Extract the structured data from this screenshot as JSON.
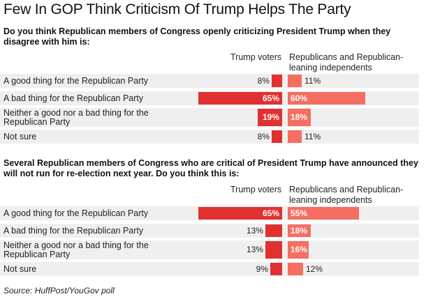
{
  "title": "Few In GOP Think Criticism Of Trump Helps The Party",
  "source": "Source: HuffPost/YouGov poll",
  "colors": {
    "trump_voters": "#e03130",
    "republicans": "#f66d61",
    "row_background": "#efefef"
  },
  "chart_data": [
    {
      "type": "bar",
      "question": "Do you think Republican members of Congress openly criticizing President Trump when they disagree with him is:",
      "column_headers": [
        "Trump voters",
        "Republicans and Republican-leaning independents"
      ],
      "categories": [
        "A good thing for the Republican Party",
        "A bad thing for the Republican Party",
        "Neither a good nor a bad thing for the Republican Party",
        "Not sure"
      ],
      "series": [
        {
          "name": "Trump voters",
          "values": [
            8,
            65,
            19,
            8
          ],
          "labels": [
            "8%",
            "65%",
            "19%",
            "8%"
          ]
        },
        {
          "name": "Republicans and Republican-leaning independents",
          "values": [
            11,
            60,
            18,
            11
          ],
          "labels": [
            "11%",
            "60%",
            "18%",
            "11%"
          ]
        }
      ],
      "unit": "%"
    },
    {
      "type": "bar",
      "question": "Several Republican members of Congress who are critical of President Trump have announced they will not run for re-election next year. Do you think this is:",
      "column_headers": [
        "Trump voters",
        "Republicans and Republican-leaning independents"
      ],
      "categories": [
        "A good thing for the Republican Party",
        "A bad thing for the Republican Party",
        "Neither a good nor a bad thing for the Republican Party",
        "Not sure"
      ],
      "series": [
        {
          "name": "Trump voters",
          "values": [
            65,
            13,
            13,
            9
          ],
          "labels": [
            "65%",
            "13%",
            "13%",
            "9%"
          ]
        },
        {
          "name": "Republicans and Republican-leaning independents",
          "values": [
            55,
            18,
            16,
            12
          ],
          "labels": [
            "55%",
            "18%",
            "16%",
            "12%"
          ]
        }
      ],
      "unit": "%"
    }
  ]
}
